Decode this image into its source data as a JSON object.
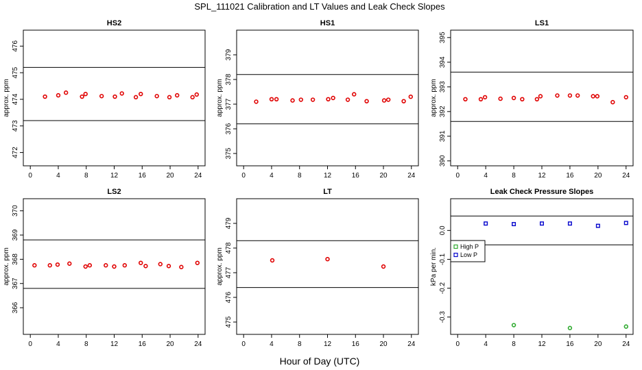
{
  "title": "SPL_111021  Calibration and LT Values and Leak Check Slopes",
  "xlabel": "Hour of Day (UTC)",
  "colors": {
    "red": "#e00000",
    "green": "#2eaa2e",
    "blue": "#0000cc",
    "axis": "#000000"
  },
  "chart_data": [
    {
      "type": "scatter",
      "title": "HS2",
      "ylabel": "approx. ppm",
      "xlim": [
        -1,
        25
      ],
      "ylim": [
        471.5,
        476.6
      ],
      "xticks": [
        0,
        4,
        8,
        12,
        16,
        20,
        24
      ],
      "yticks": [
        472,
        473,
        474,
        475,
        476
      ],
      "hlines": [
        473.2,
        475.2
      ],
      "series": [
        {
          "color": "red",
          "marker": "circle",
          "points": [
            [
              2.1,
              474.1
            ],
            [
              4,
              474.15
            ],
            [
              5.1,
              474.25
            ],
            [
              7.4,
              474.1
            ],
            [
              7.9,
              474.2
            ],
            [
              10.2,
              474.12
            ],
            [
              12.1,
              474.1
            ],
            [
              13.1,
              474.22
            ],
            [
              15.1,
              474.08
            ],
            [
              15.8,
              474.2
            ],
            [
              18.1,
              474.12
            ],
            [
              19.9,
              474.08
            ],
            [
              21,
              474.15
            ],
            [
              23.2,
              474.08
            ],
            [
              23.8,
              474.18
            ]
          ]
        }
      ]
    },
    {
      "type": "scatter",
      "title": "HS1",
      "ylabel": "approx. ppm",
      "xlim": [
        -1,
        25
      ],
      "ylim": [
        374.5,
        380.0
      ],
      "xticks": [
        0,
        4,
        8,
        12,
        16,
        20,
        24
      ],
      "yticks": [
        375,
        376,
        377,
        378,
        379
      ],
      "hlines": [
        376.2,
        378.2
      ],
      "series": [
        {
          "color": "red",
          "marker": "circle",
          "points": [
            [
              1.8,
              377.1
            ],
            [
              4,
              377.2
            ],
            [
              4.7,
              377.2
            ],
            [
              7,
              377.15
            ],
            [
              8.2,
              377.18
            ],
            [
              9.9,
              377.18
            ],
            [
              12.1,
              377.2
            ],
            [
              12.8,
              377.25
            ],
            [
              14.9,
              377.18
            ],
            [
              15.8,
              377.4
            ],
            [
              17.6,
              377.12
            ],
            [
              20.1,
              377.15
            ],
            [
              20.7,
              377.18
            ],
            [
              22.9,
              377.12
            ],
            [
              23.9,
              377.3
            ]
          ]
        }
      ]
    },
    {
      "type": "scatter",
      "title": "LS1",
      "ylabel": "approx. ppm",
      "xlim": [
        -1,
        25
      ],
      "ylim": [
        389.8,
        395.3
      ],
      "xticks": [
        0,
        4,
        8,
        12,
        16,
        20,
        24
      ],
      "yticks": [
        390,
        391,
        392,
        393,
        394,
        395
      ],
      "hlines": [
        391.6,
        393.6
      ],
      "series": [
        {
          "color": "red",
          "marker": "circle",
          "points": [
            [
              1.1,
              392.5
            ],
            [
              3.3,
              392.5
            ],
            [
              3.9,
              392.58
            ],
            [
              6.1,
              392.52
            ],
            [
              8,
              392.55
            ],
            [
              9.2,
              392.5
            ],
            [
              11.3,
              392.5
            ],
            [
              11.8,
              392.62
            ],
            [
              14.2,
              392.65
            ],
            [
              16,
              392.65
            ],
            [
              17.1,
              392.65
            ],
            [
              19.3,
              392.62
            ],
            [
              19.9,
              392.62
            ],
            [
              22.1,
              392.38
            ],
            [
              24,
              392.58
            ]
          ]
        }
      ]
    },
    {
      "type": "scatter",
      "title": "LS2",
      "ylabel": "approx. ppm",
      "xlim": [
        -1,
        25
      ],
      "ylim": [
        364.9,
        370.5
      ],
      "xticks": [
        0,
        4,
        8,
        12,
        16,
        20,
        24
      ],
      "yticks": [
        366,
        367,
        368,
        369,
        370
      ],
      "hlines": [
        366.8,
        368.8
      ],
      "series": [
        {
          "color": "red",
          "marker": "circle",
          "points": [
            [
              0.6,
              367.75
            ],
            [
              2.8,
              367.75
            ],
            [
              3.9,
              367.78
            ],
            [
              5.6,
              367.82
            ],
            [
              7.9,
              367.7
            ],
            [
              8.5,
              367.75
            ],
            [
              10.8,
              367.75
            ],
            [
              12,
              367.7
            ],
            [
              13.5,
              367.75
            ],
            [
              15.8,
              367.85
            ],
            [
              16.5,
              367.72
            ],
            [
              18.6,
              367.8
            ],
            [
              19.8,
              367.72
            ],
            [
              21.6,
              367.68
            ],
            [
              23.9,
              367.85
            ]
          ]
        }
      ]
    },
    {
      "type": "scatter",
      "title": "LT",
      "ylabel": "approx. ppm",
      "xlim": [
        -1,
        25
      ],
      "ylim": [
        474.5,
        480.0
      ],
      "xticks": [
        0,
        4,
        8,
        12,
        16,
        20,
        24
      ],
      "yticks": [
        475,
        476,
        477,
        478,
        479
      ],
      "hlines": [
        476.4,
        478.3
      ],
      "series": [
        {
          "color": "red",
          "marker": "circle",
          "points": [
            [
              4.1,
              477.5
            ],
            [
              12,
              477.55
            ],
            [
              20,
              477.25
            ]
          ]
        }
      ]
    },
    {
      "type": "scatter",
      "title": "Leak Check Pressure Slopes",
      "ylabel": "kPa per min.",
      "xlim": [
        -1,
        25
      ],
      "ylim": [
        -0.36,
        0.11
      ],
      "xticks": [
        0,
        4,
        8,
        12,
        16,
        20,
        24
      ],
      "yticks": [
        -0.3,
        -0.2,
        -0.1,
        0.0
      ],
      "ytick_labels": [
        "-0.3",
        "-0.2",
        "-0.1",
        "0.0"
      ],
      "hlines": [
        0.05,
        -0.05
      ],
      "legend": {
        "position": "left",
        "entries": [
          "High P",
          "Low P"
        ]
      },
      "series": [
        {
          "name": "High P",
          "color": "green",
          "marker": "circle",
          "points": [
            [
              8,
              -0.328
            ],
            [
              16,
              -0.338
            ],
            [
              24,
              -0.333
            ]
          ]
        },
        {
          "name": "Low P",
          "color": "blue",
          "marker": "square",
          "points": [
            [
              4,
              0.024
            ],
            [
              8,
              0.022
            ],
            [
              12,
              0.024
            ],
            [
              16,
              0.024
            ],
            [
              20,
              0.016
            ],
            [
              24,
              0.026
            ]
          ]
        }
      ]
    }
  ]
}
